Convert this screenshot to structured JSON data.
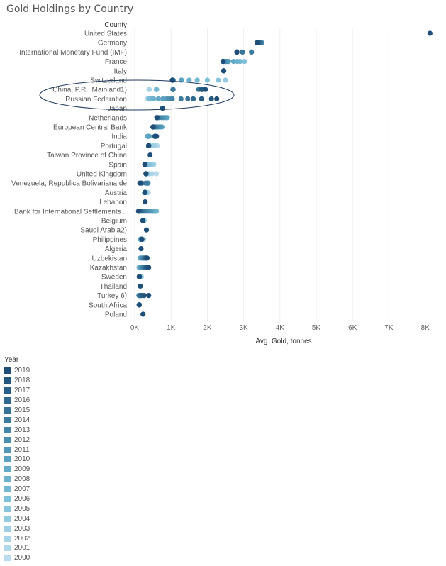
{
  "chart_data": {
    "type": "scatter",
    "title": "Gold Holdings by Country",
    "row_header": "County",
    "xlabel": "Avg. Gold, tonnes",
    "xlim": [
      0,
      8500
    ],
    "xticks": [
      {
        "value": 0,
        "label": "0K"
      },
      {
        "value": 1000,
        "label": "1K"
      },
      {
        "value": 2000,
        "label": "2K"
      },
      {
        "value": 3000,
        "label": "3K"
      },
      {
        "value": 4000,
        "label": "4K"
      },
      {
        "value": 5000,
        "label": "5K"
      },
      {
        "value": 6000,
        "label": "6K"
      },
      {
        "value": 7000,
        "label": "7K"
      },
      {
        "value": 8000,
        "label": "8K"
      }
    ],
    "grid": "vertical",
    "legend": {
      "title": "Year",
      "placement": "bottom-left",
      "years": [
        "2019",
        "2018",
        "2017",
        "2016",
        "2015",
        "2014",
        "2013",
        "2012",
        "2011",
        "2010",
        "2009",
        "2008",
        "2007",
        "2006",
        "2005",
        "2004",
        "2003",
        "2002",
        "2001",
        "2000"
      ],
      "colors": [
        "#1f4e79",
        "#24577f",
        "#2a6087",
        "#30698f",
        "#377397",
        "#3d7c9f",
        "#4485a8",
        "#4b8fb0",
        "#5398b9",
        "#5ba1c1",
        "#63a9c8",
        "#6cb1ce",
        "#75b8d4",
        "#7ebfd9",
        "#88c5dd",
        "#92cae1",
        "#9ccfe4",
        "#a6d3e7",
        "#b0d7ea",
        "#b9dbec"
      ]
    },
    "annotation": "ellipse around China, P.R.: Mainland1) and Russian Federation",
    "countries": [
      {
        "name": "United States",
        "values": [
          8133
        ]
      },
      {
        "name": "Germany",
        "values": [
          3370,
          3380,
          3400,
          3420,
          3440,
          3470,
          3500
        ]
      },
      {
        "name": "International Monetary Fund (IMF)",
        "values": [
          2814,
          2814,
          2814,
          2814,
          2967,
          3217,
          3217
        ]
      },
      {
        "name": "France",
        "values": [
          2436,
          2436,
          2436,
          2436,
          2436,
          2436,
          2436,
          2508,
          2541,
          2586,
          2720,
          2826,
          2902,
          3025
        ]
      },
      {
        "name": "Italy",
        "values": [
          2452,
          2452,
          2452,
          2452,
          2452
        ]
      },
      {
        "name": "Switzerland",
        "values": [
          1040,
          1040,
          1040,
          1040,
          1040,
          1040,
          1040,
          1040,
          1064,
          1290,
          1290,
          1500,
          1720,
          2000,
          2300,
          2500
        ]
      },
      {
        "name": "China, P.R.: Mainland1)",
        "values": [
          1948,
          1852,
          1843,
          1842,
          1762,
          1054,
          1054,
          1054,
          1054,
          1054,
          1054,
          1054,
          600,
          600,
          600,
          600,
          600,
          400,
          395,
          395
        ]
      },
      {
        "name": "Russian Federation",
        "values": [
          2260,
          2113,
          1839,
          1614,
          1460,
          1275,
          1035,
          957,
          883,
          775,
          650,
          520,
          450,
          400,
          390,
          387,
          390,
          390,
          420,
          343
        ]
      },
      {
        "name": "Japan",
        "values": [
          765
        ]
      },
      {
        "name": "Netherlands",
        "values": [
          612,
          612,
          612,
          612,
          612,
          640,
          690,
          750,
          800,
          860,
          900
        ]
      },
      {
        "name": "European Central Bank",
        "values": [
          500,
          505,
          510,
          520,
          533,
          560,
          600,
          650,
          700,
          750
        ]
      },
      {
        "name": "India",
        "values": [
          600,
          560,
          558,
          557,
          557,
          557,
          558,
          558,
          558,
          400,
          358,
          358,
          358,
          358,
          358,
          358,
          358,
          358,
          358,
          358
        ]
      },
      {
        "name": "Portugal",
        "values": [
          382,
          382,
          382,
          382,
          382,
          382,
          382,
          382,
          382,
          382,
          383,
          383,
          383,
          383,
          383,
          420,
          500,
          550,
          600,
          620
        ]
      },
      {
        "name": "Taiwan Province of China",
        "values": [
          423
        ]
      },
      {
        "name": "Spain",
        "values": [
          282,
          282,
          282,
          282,
          282,
          282,
          282,
          282,
          282,
          282,
          282,
          282,
          300,
          350,
          400,
          450,
          500,
          520,
          525,
          525
        ]
      },
      {
        "name": "United Kingdom",
        "values": [
          310,
          310,
          310,
          310,
          310,
          310,
          310,
          310,
          310,
          310,
          310,
          310,
          310,
          310,
          310,
          315,
          350,
          400,
          480,
          600
        ]
      },
      {
        "name": "Venezuela, Republica Bolivariana de",
        "values": [
          160,
          150,
          140,
          150,
          200,
          300,
          350,
          360,
          365,
          366,
          356,
          356,
          357,
          358,
          359,
          360,
          362,
          363,
          364,
          365
        ]
      },
      {
        "name": "Austria",
        "values": [
          280,
          280,
          280,
          280,
          280,
          280,
          280,
          280,
          280,
          280,
          280,
          280,
          280,
          290,
          300,
          310,
          320,
          330,
          340,
          377
        ]
      },
      {
        "name": "Lebanon",
        "values": [
          287
        ]
      },
      {
        "name": "Bank for International Settlements ..",
        "values": [
          104,
          115,
          120,
          150,
          200,
          250,
          300,
          350,
          400,
          450,
          500,
          550,
          600,
          580,
          560,
          540,
          520,
          500,
          480,
          190
        ]
      },
      {
        "name": "Belgium",
        "values": [
          227,
          227,
          227,
          227,
          227,
          227,
          227,
          227,
          227,
          227,
          227,
          227,
          227,
          227,
          227,
          250,
          260,
          260,
          260,
          260
        ]
      },
      {
        "name": "Saudi Arabia2)",
        "values": [
          323
        ]
      },
      {
        "name": "Philippines",
        "values": [
          197,
          196,
          195,
          197,
          195,
          193,
          192,
          191,
          190,
          180,
          170,
          160,
          155,
          150,
          160,
          170,
          180,
          200,
          220,
          250
        ]
      },
      {
        "name": "Algeria",
        "values": [
          174
        ]
      },
      {
        "name": "Uzbekistan",
        "values": [
          340,
          330,
          320,
          300,
          280,
          260,
          240,
          220,
          200,
          180,
          160,
          150
        ]
      },
      {
        "name": "Kazakhstan",
        "values": [
          385,
          350,
          320,
          300,
          280,
          250,
          230,
          200,
          180,
          160,
          140,
          120
        ]
      },
      {
        "name": "Sweden",
        "values": [
          126,
          126,
          126,
          126,
          126,
          126,
          126,
          126,
          126,
          126,
          126,
          126,
          126,
          130,
          140,
          150,
          155,
          160,
          180,
          190
        ]
      },
      {
        "name": "Thailand",
        "values": [
          154
        ]
      },
      {
        "name": "Turkey 6)",
        "values": [
          385,
          260,
          190,
          170,
          155,
          130,
          120,
          116,
          116,
          116
        ]
      },
      {
        "name": "South Africa",
        "values": [
          125,
          125,
          125,
          125,
          125,
          125,
          125,
          125,
          125,
          125,
          125
        ]
      },
      {
        "name": "Poland",
        "values": [
          228
        ]
      }
    ]
  }
}
